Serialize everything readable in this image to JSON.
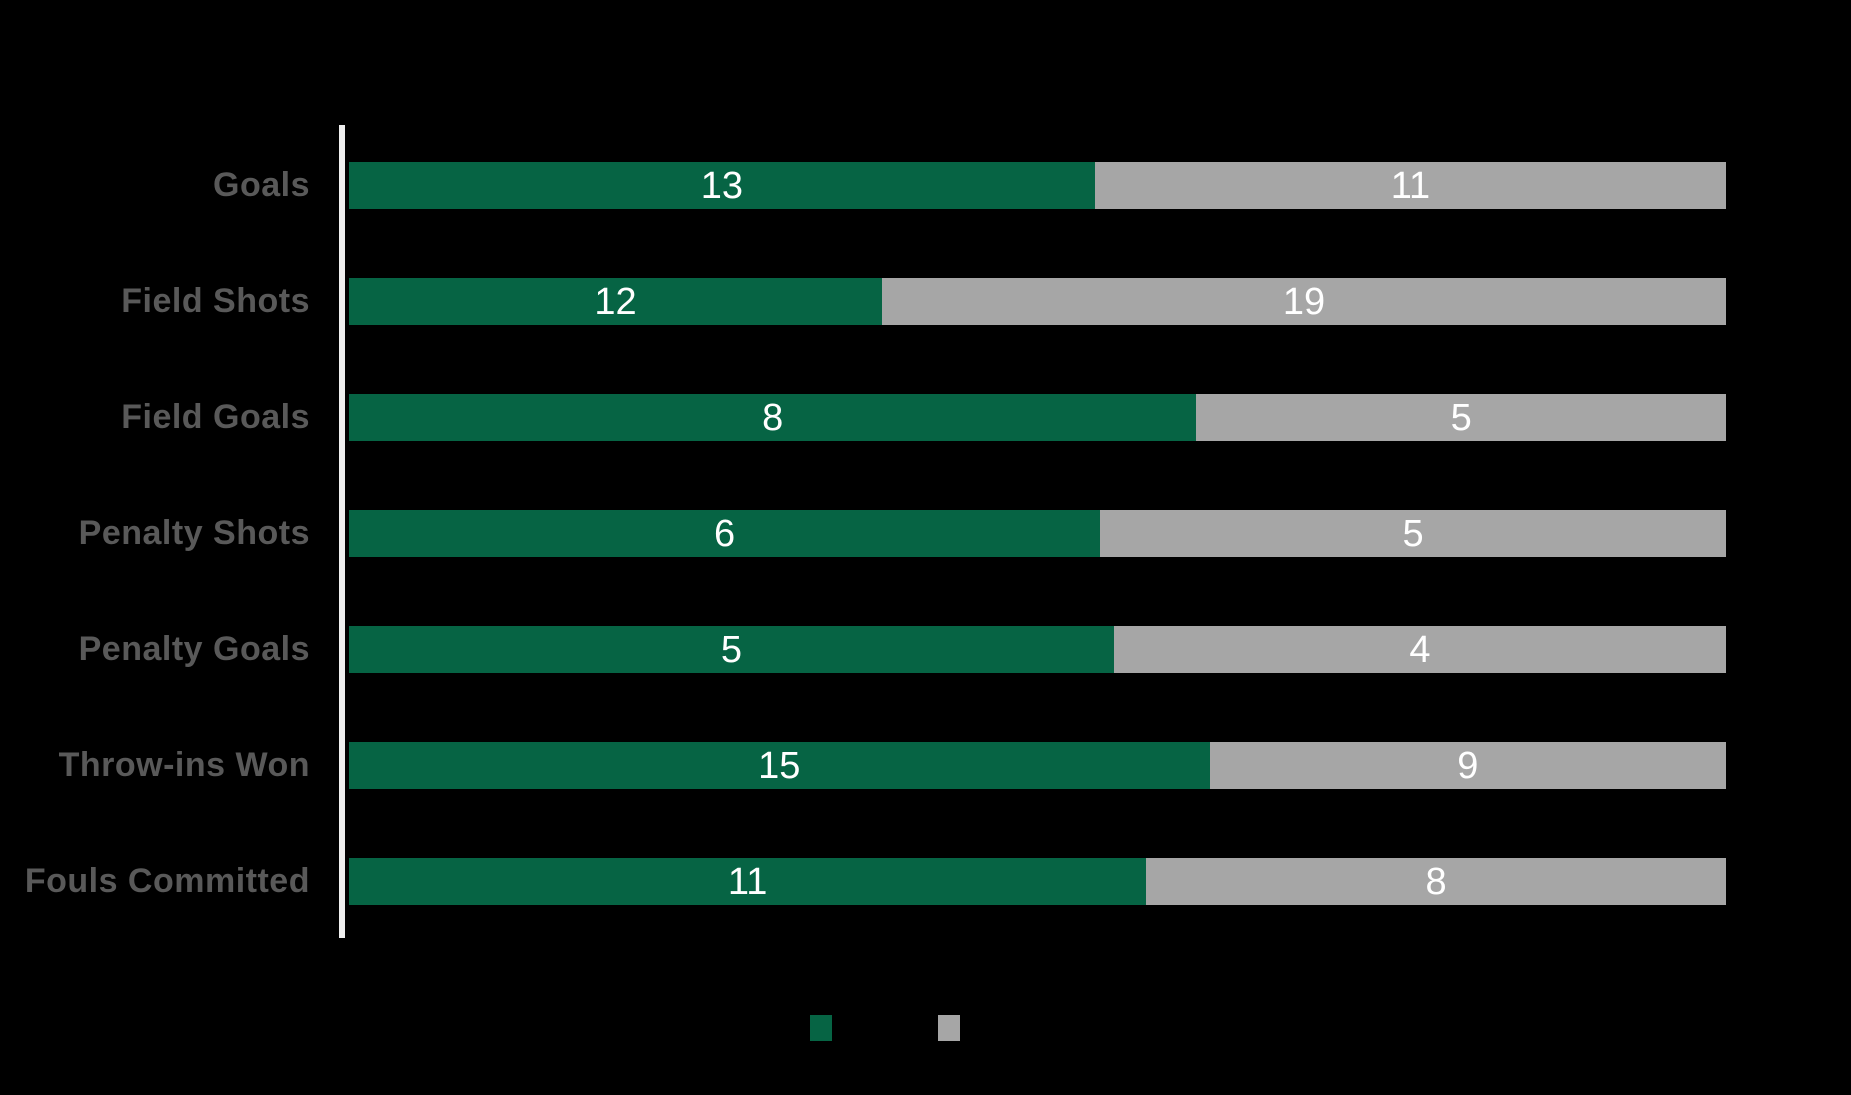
{
  "colors": {
    "background": "#000000",
    "series_green": "#066444",
    "series_gray": "#A6A6A6",
    "category_label_text": "#595959",
    "value_label_text": "#FFFFFF",
    "axis_line": "#EFEFEF"
  },
  "chart_data": {
    "type": "bar",
    "orientation": "horizontal",
    "stacked": true,
    "normalized": "100%",
    "title": "",
    "xlabel": "",
    "ylabel": "",
    "grid": false,
    "categories": [
      "Goals",
      "Field Shots",
      "Field Goals",
      "Penalty Shots",
      "Penalty Goals",
      "Throw-ins Won",
      "Fouls Committed"
    ],
    "series": [
      {
        "name": "",
        "color": "#066444",
        "values": [
          13,
          12,
          8,
          6,
          5,
          15,
          11
        ]
      },
      {
        "name": "",
        "color": "#A6A6A6",
        "values": [
          11,
          19,
          5,
          5,
          4,
          9,
          8
        ]
      }
    ],
    "value_labels": "inside-center-of-each-segment",
    "legend": {
      "position": "bottom-center",
      "labels_visible": false,
      "swatch_colors": [
        "#066444",
        "#A6A6A6"
      ]
    }
  }
}
